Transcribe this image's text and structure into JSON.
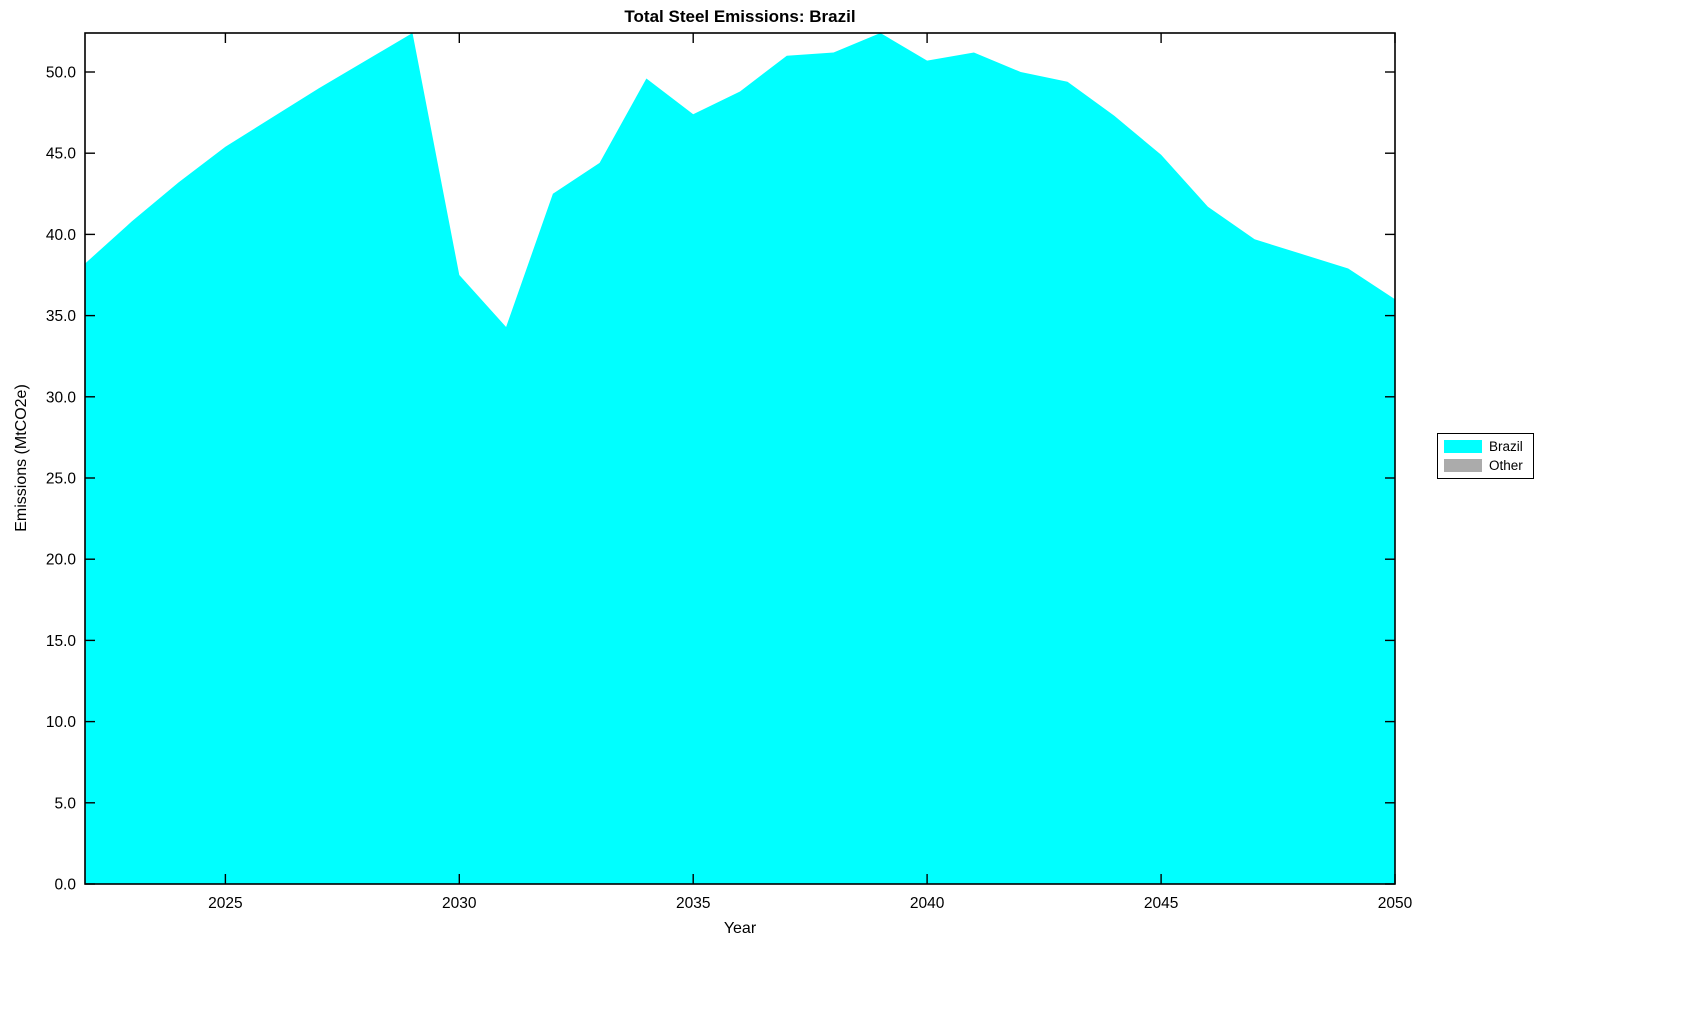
{
  "page": {
    "background": "#ffffff"
  },
  "chart_data": {
    "type": "area",
    "title": "Total Steel Emissions: Brazil",
    "xlabel": "Year",
    "ylabel": "Emissions (MtCO2e)",
    "xlim": [
      2022,
      2050
    ],
    "ylim": [
      0,
      52.4
    ],
    "grid": false,
    "x_ticks": [
      2025,
      2030,
      2035,
      2040,
      2045,
      2050
    ],
    "x_tick_labels": [
      "2025",
      "2030",
      "2035",
      "2040",
      "2045",
      "2050"
    ],
    "y_ticks": [
      0,
      5,
      10,
      15,
      20,
      25,
      30,
      35,
      40,
      45,
      50
    ],
    "y_tick_labels": [
      "0.0",
      "5.0",
      "10.0",
      "15.0",
      "20.0",
      "25.0",
      "30.0",
      "35.0",
      "40.0",
      "45.0",
      "50.0"
    ],
    "x": [
      2022,
      2023,
      2024,
      2025,
      2026,
      2027,
      2028,
      2029,
      2030,
      2031,
      2032,
      2033,
      2034,
      2035,
      2036,
      2037,
      2038,
      2039,
      2040,
      2041,
      2042,
      2043,
      2044,
      2045,
      2046,
      2047,
      2048,
      2049,
      2050
    ],
    "series": [
      {
        "name": "Brazil",
        "color": "#00FFFF",
        "values": [
          38.2,
          40.8,
          43.2,
          45.4,
          47.2,
          49.0,
          50.7,
          52.4,
          37.5,
          34.3,
          42.5,
          44.4,
          49.6,
          47.4,
          48.8,
          51.0,
          51.2,
          52.4,
          50.7,
          51.2,
          50.0,
          49.4,
          47.3,
          44.9,
          41.7,
          39.7,
          38.8,
          37.9,
          36.0
        ]
      },
      {
        "name": "Other",
        "color": "#ABABAB",
        "values": [
          0,
          0,
          0,
          0,
          0,
          0,
          0,
          0,
          0,
          0,
          0,
          0,
          0,
          0,
          0,
          0,
          0,
          0,
          0,
          0,
          0,
          0,
          0,
          0,
          0,
          0,
          0,
          0,
          0
        ]
      }
    ],
    "legend": {
      "position": "right-outside",
      "items": [
        {
          "label": "Brazil",
          "color": "#00FFFF"
        },
        {
          "label": "Other",
          "color": "#ABABAB"
        }
      ]
    },
    "axis_color": "#000000"
  }
}
